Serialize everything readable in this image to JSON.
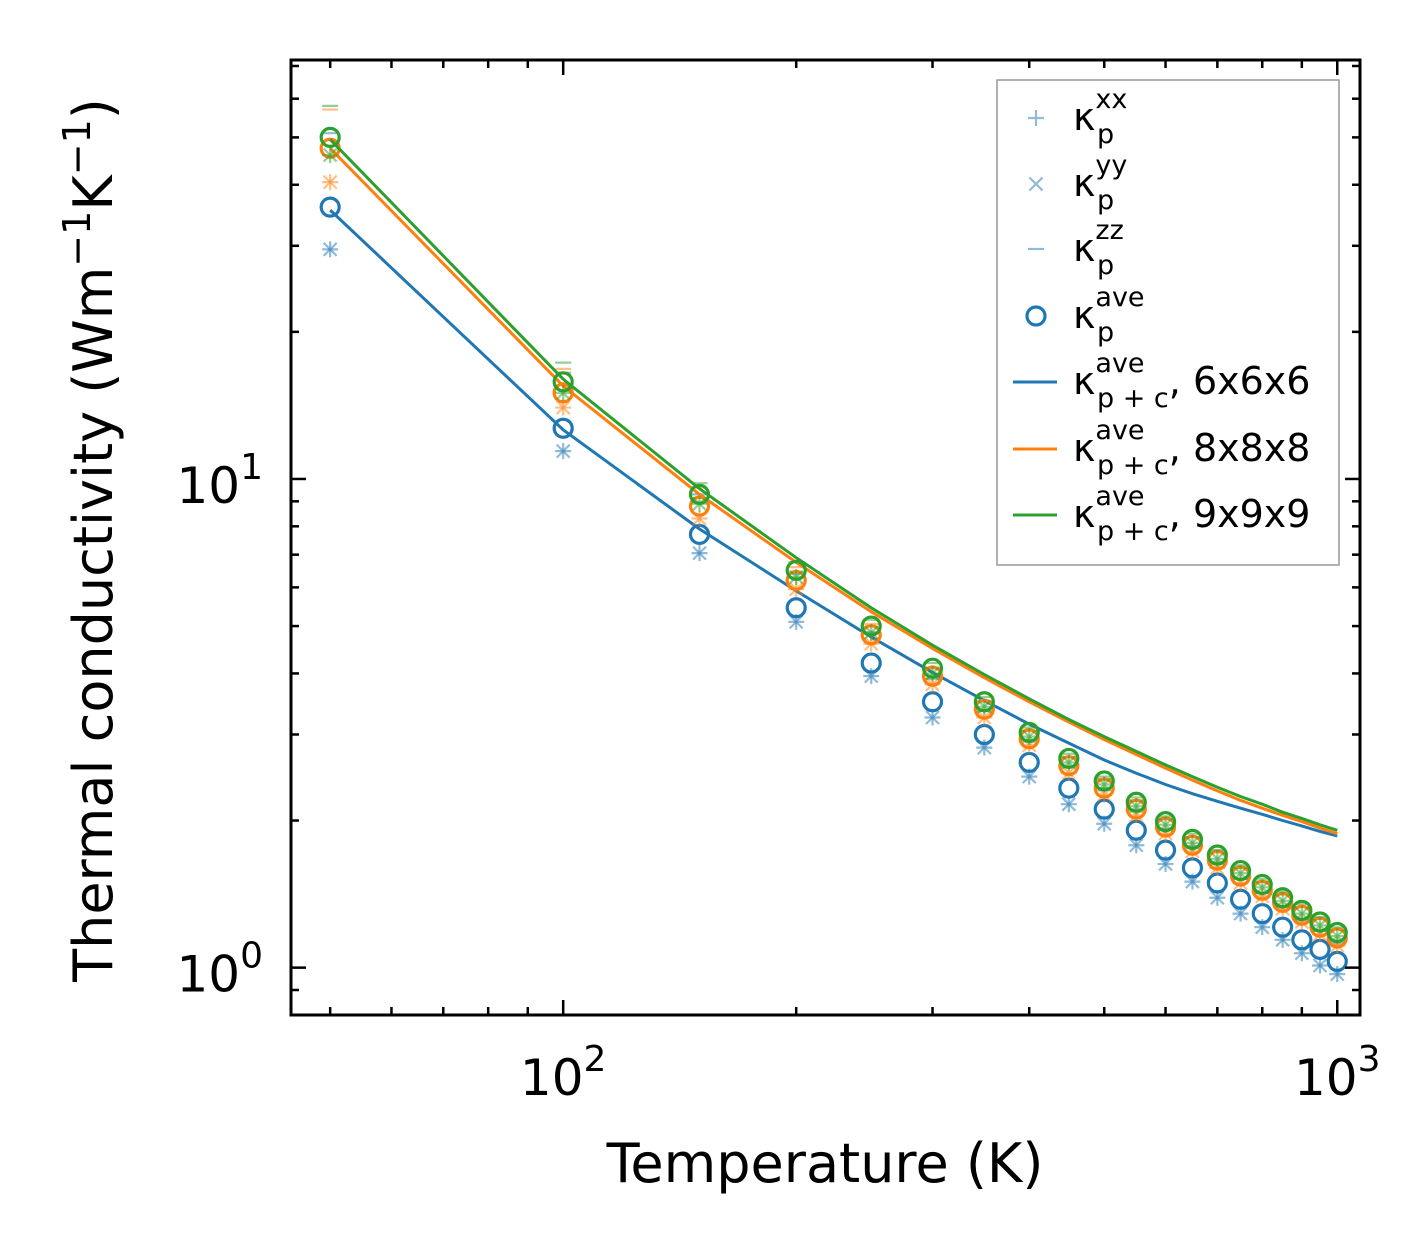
{
  "chart_data": {
    "type": "scatter",
    "title": "",
    "xlabel": "Temperature (K)",
    "ylabel": "Thermal conductivity (Wm",
    "ylabel_parts": [
      "Thermal conductivity (Wm",
      "−1",
      "K",
      "−1",
      ")"
    ],
    "xscale": "log",
    "yscale": "log",
    "xlim": [
      44.5,
      1070
    ],
    "ylim": [
      0.8,
      72
    ],
    "x_ticks": [
      {
        "base": "10",
        "exp": "2",
        "value": 100
      },
      {
        "base": "10",
        "exp": "3",
        "value": 1000
      }
    ],
    "y_ticks": [
      {
        "base": "10",
        "exp": "0",
        "value": 1
      },
      {
        "base": "10",
        "exp": "1",
        "value": 10
      }
    ],
    "legend_position": "upper-right",
    "colors": {
      "blue": "#1f77b4",
      "orange": "#ff7f0e",
      "green": "#2ca02c",
      "axis": "#000000",
      "legend_border": "#999999"
    },
    "x": [
      50,
      100,
      150,
      200,
      250,
      300,
      350,
      400,
      450,
      500,
      550,
      600,
      650,
      700,
      750,
      800,
      850,
      900,
      950,
      1000
    ],
    "series": [
      {
        "name": "6x6x6",
        "color": "#1f77b4",
        "p_ave": [
          36,
          12.7,
          7.7,
          5.45,
          4.2,
          3.5,
          3.0,
          2.63,
          2.33,
          2.11,
          1.91,
          1.74,
          1.6,
          1.49,
          1.38,
          1.29,
          1.21,
          1.14,
          1.09,
          1.03
        ],
        "p_xx": [
          29.5,
          11.4,
          7.05,
          5.1,
          3.95,
          3.25,
          2.82,
          2.46,
          2.16,
          1.97,
          1.78,
          1.63,
          1.5,
          1.39,
          1.29,
          1.21,
          1.14,
          1.07,
          1.01,
          0.97
        ],
        "p_yy": [
          29.5,
          11.4,
          7.05,
          5.1,
          3.95,
          3.25,
          2.82,
          2.46,
          2.16,
          1.97,
          1.78,
          1.63,
          1.5,
          1.39,
          1.29,
          1.21,
          1.14,
          1.07,
          1.01,
          0.97
        ],
        "p_zz": [
          51,
          16.5,
          9.3,
          6.4,
          4.85,
          3.9,
          3.35,
          2.92,
          2.58,
          2.33,
          2.1,
          1.92,
          1.77,
          1.64,
          1.52,
          1.42,
          1.33,
          1.25,
          1.19,
          1.12
        ],
        "pc_ave": [
          35.5,
          12.6,
          7.9,
          5.9,
          4.75,
          4.02,
          3.52,
          3.15,
          2.88,
          2.66,
          2.5,
          2.37,
          2.27,
          2.19,
          2.12,
          2.06,
          2.0,
          1.95,
          1.9,
          1.86
        ]
      },
      {
        "name": "8x8x8",
        "color": "#ff7f0e",
        "p_ave": [
          47.5,
          15.0,
          8.8,
          6.2,
          4.8,
          3.95,
          3.38,
          2.94,
          2.59,
          2.33,
          2.11,
          1.94,
          1.78,
          1.66,
          1.54,
          1.44,
          1.36,
          1.28,
          1.21,
          1.15
        ],
        "p_xx": [
          40.5,
          14.0,
          8.3,
          5.95,
          4.6,
          3.8,
          3.25,
          2.85,
          2.5,
          2.26,
          2.05,
          1.88,
          1.73,
          1.6,
          1.49,
          1.4,
          1.32,
          1.24,
          1.17,
          1.11
        ],
        "p_yy": [
          40.5,
          14.0,
          8.3,
          5.95,
          4.6,
          3.8,
          3.25,
          2.85,
          2.5,
          2.26,
          2.05,
          1.88,
          1.73,
          1.6,
          1.49,
          1.4,
          1.32,
          1.24,
          1.17,
          1.11
        ],
        "p_zz": [
          57,
          16.8,
          9.6,
          6.6,
          5.05,
          4.1,
          3.5,
          3.05,
          2.7,
          2.43,
          2.2,
          2.01,
          1.85,
          1.72,
          1.6,
          1.5,
          1.41,
          1.33,
          1.26,
          1.2
        ],
        "pc_ave": [
          47.5,
          15.5,
          9.3,
          6.75,
          5.35,
          4.5,
          3.92,
          3.5,
          3.18,
          2.93,
          2.73,
          2.56,
          2.42,
          2.3,
          2.2,
          2.12,
          2.05,
          1.99,
          1.93,
          1.88
        ]
      },
      {
        "name": "9x9x9",
        "color": "#2ca02c",
        "p_ave": [
          50,
          15.8,
          9.3,
          6.5,
          5.0,
          4.1,
          3.5,
          3.03,
          2.68,
          2.41,
          2.18,
          1.99,
          1.83,
          1.7,
          1.58,
          1.48,
          1.39,
          1.31,
          1.24,
          1.18
        ],
        "p_xx": [
          46,
          15.0,
          8.9,
          6.3,
          4.85,
          4.0,
          3.42,
          2.97,
          2.63,
          2.37,
          2.14,
          1.96,
          1.8,
          1.67,
          1.56,
          1.46,
          1.37,
          1.29,
          1.22,
          1.16
        ],
        "p_yy": [
          46,
          15.0,
          8.9,
          6.3,
          4.85,
          4.0,
          3.42,
          2.97,
          2.63,
          2.37,
          2.14,
          1.96,
          1.8,
          1.67,
          1.56,
          1.46,
          1.37,
          1.29,
          1.22,
          1.16
        ],
        "p_zz": [
          58,
          17.3,
          9.8,
          6.75,
          5.15,
          4.2,
          3.58,
          3.1,
          2.74,
          2.46,
          2.23,
          2.04,
          1.88,
          1.74,
          1.62,
          1.52,
          1.43,
          1.35,
          1.27,
          1.21
        ],
        "pc_ave": [
          49.5,
          16.0,
          9.55,
          6.9,
          5.45,
          4.57,
          3.98,
          3.55,
          3.22,
          2.97,
          2.77,
          2.6,
          2.46,
          2.34,
          2.24,
          2.16,
          2.08,
          2.02,
          1.96,
          1.91
        ]
      }
    ],
    "legend": [
      {
        "kind": "plus",
        "symbol": "κ",
        "sub": "p",
        "sup": "xx",
        "suffix": ""
      },
      {
        "kind": "cross",
        "symbol": "κ",
        "sub": "p",
        "sup": "yy",
        "suffix": ""
      },
      {
        "kind": "dash",
        "symbol": "κ",
        "sub": "p",
        "sup": "zz",
        "suffix": ""
      },
      {
        "kind": "circle",
        "symbol": "κ",
        "sub": "p",
        "sup": "ave",
        "suffix": ""
      },
      {
        "kind": "line",
        "color": "#1f77b4",
        "symbol": "κ",
        "sub": "p + c",
        "sup": "ave",
        "suffix": ", 6x6x6"
      },
      {
        "kind": "line",
        "color": "#ff7f0e",
        "symbol": "κ",
        "sub": "p + c",
        "sup": "ave",
        "suffix": ", 8x8x8"
      },
      {
        "kind": "line",
        "color": "#2ca02c",
        "symbol": "κ",
        "sub": "p + c",
        "sup": "ave",
        "suffix": ", 9x9x9"
      }
    ]
  }
}
